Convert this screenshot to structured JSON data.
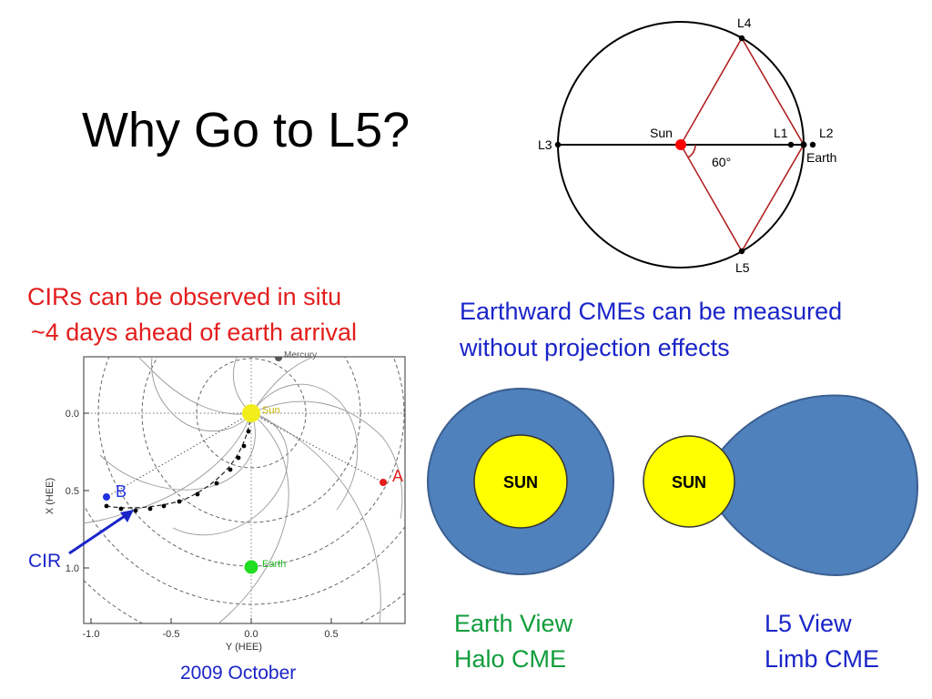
{
  "slide": {
    "title": "Why Go to L5?"
  },
  "cir_text": {
    "line1": "CIRs can be observed in situ",
    "line2": "~4 days ahead of earth arrival"
  },
  "cme_text": {
    "line1": "Earthward CMEs can be measured",
    "line2": "without projection effects"
  },
  "lagrange_diagram": {
    "labels": {
      "sun": "Sun",
      "l1": "L1",
      "l2": "L2",
      "l3": "L3",
      "l4": "L4",
      "l5": "L5",
      "earth": "Earth",
      "angle": "60°"
    },
    "colors": {
      "orbit": "#000000",
      "triangle": "#b22222",
      "sun_dot": "#ff0000"
    }
  },
  "hee_plot": {
    "x_axis_label": "Y (HEE)",
    "y_axis_label": "X (HEE)",
    "x_ticks": [
      "-1.0",
      "-0.5",
      "0.0",
      "0.5"
    ],
    "y_ticks": [
      "0.0",
      "0.5",
      "1.0"
    ],
    "labels": {
      "sun": "Sun",
      "earth": "Earth",
      "mercury": "Mercury",
      "stereo_a": "A",
      "stereo_b": "B"
    },
    "cir_label": "CIR",
    "caption": "2009 October",
    "colors": {
      "sun": "#f2ee1c",
      "earth": "#22dd22",
      "stereo_a": "#e31d1d",
      "stereo_b": "#2030e0",
      "arrow": "#1a25c8"
    }
  },
  "cme_views": {
    "earth_view": {
      "sun_label": "SUN",
      "line1": "Earth View",
      "line2": "Halo CME"
    },
    "l5_view": {
      "sun_label": "SUN",
      "line1": "L5 View",
      "line2": "Limb CME"
    },
    "colors": {
      "cme": "#4f81bd",
      "cme_outline": "#3b5f8f",
      "sun": "#ffff00"
    }
  }
}
